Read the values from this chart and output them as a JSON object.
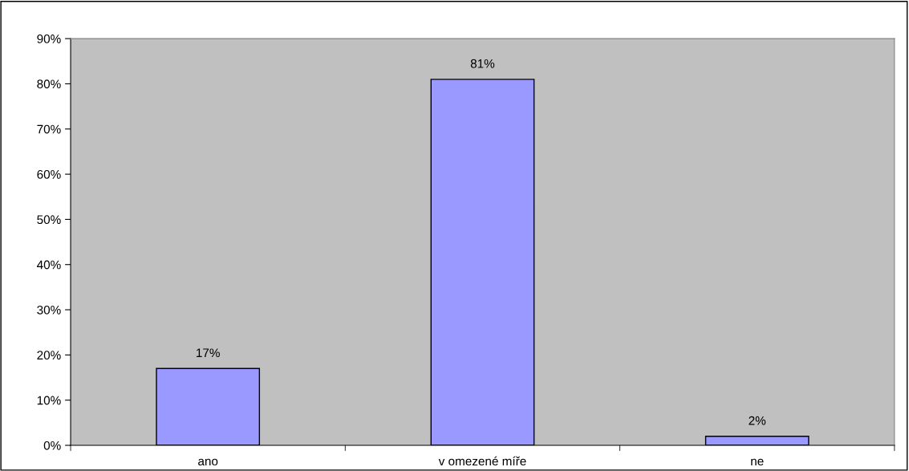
{
  "chart_data": {
    "type": "bar",
    "categories": [
      "ano",
      "v omezené míře",
      "ne"
    ],
    "values": [
      17,
      81,
      2
    ],
    "value_labels": [
      "17%",
      "81%",
      "2%"
    ],
    "color": "#9999ff",
    "ylim": [
      0,
      90
    ],
    "yticks": [
      {
        "value": 0,
        "label": "0%"
      },
      {
        "value": 10,
        "label": "10%"
      },
      {
        "value": 20,
        "label": "20%"
      },
      {
        "value": 30,
        "label": "30%"
      },
      {
        "value": 40,
        "label": "40%"
      },
      {
        "value": 50,
        "label": "50%"
      },
      {
        "value": 60,
        "label": "60%"
      },
      {
        "value": 70,
        "label": "70%"
      },
      {
        "value": 80,
        "label": "80%"
      },
      {
        "value": 90,
        "label": "90%"
      }
    ],
    "grid": false,
    "legend": false
  }
}
